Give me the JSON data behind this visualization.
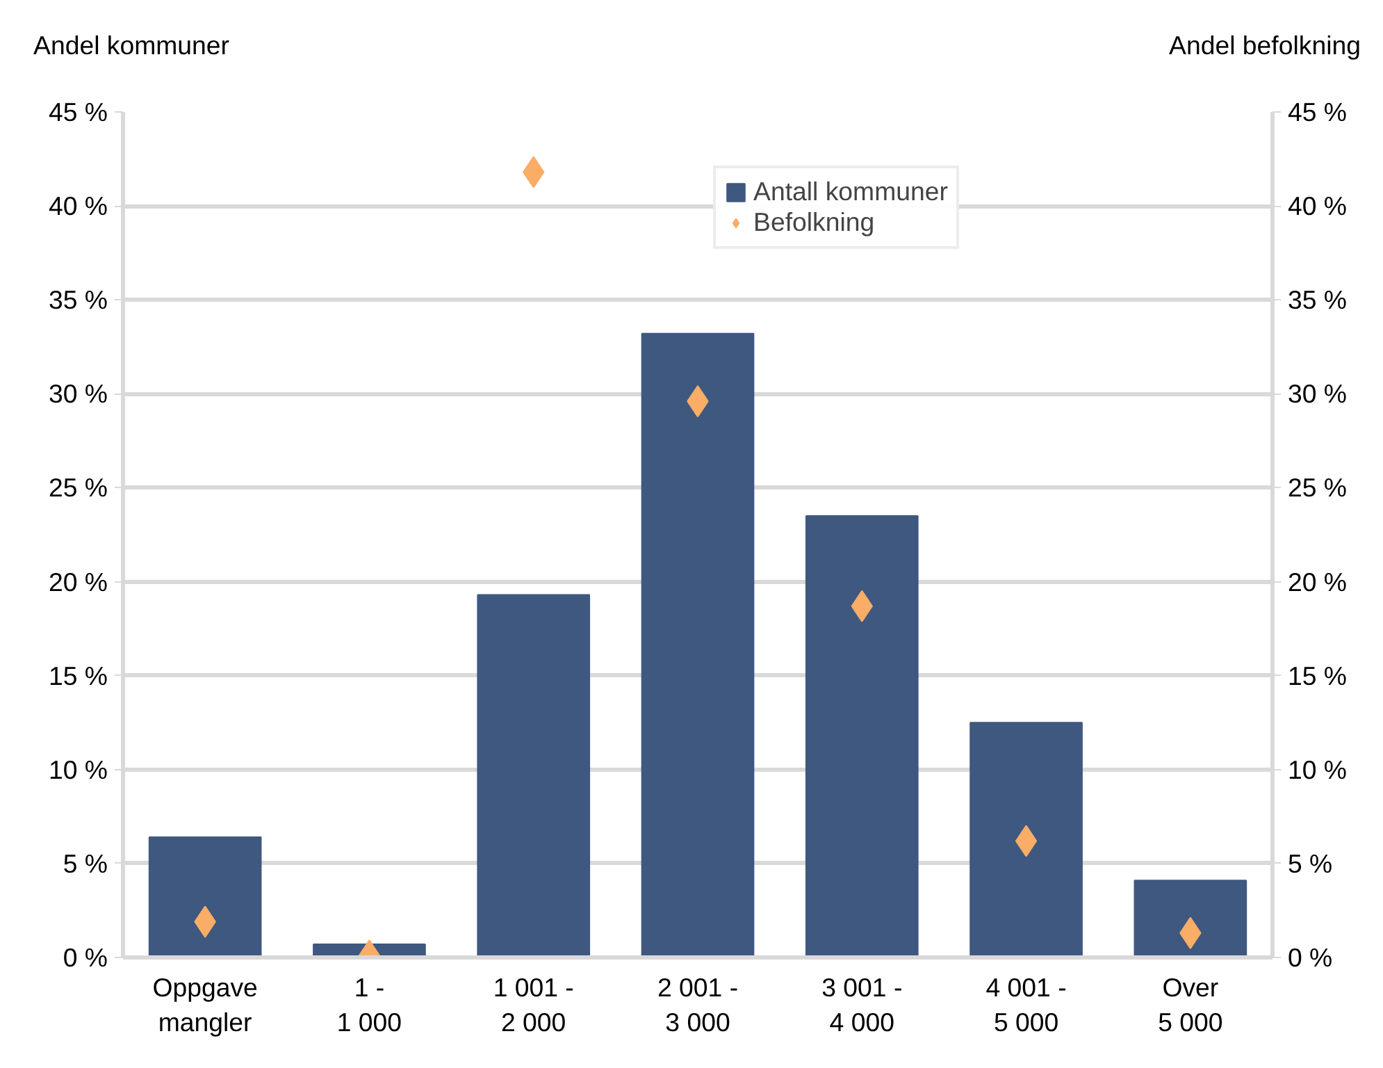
{
  "chart_data": {
    "type": "bar",
    "ylabel": "Andel kommuner",
    "y2label": "Andel befolkning",
    "categories": [
      "Oppgave\nmangler",
      "1 -\n1 000",
      "1 001 -\n2 000",
      "2 001 -\n3 000",
      "3 001 -\n4 000",
      "4 001 -\n5 000",
      "Over\n5 000"
    ],
    "series": [
      {
        "name": "Antall kommuner",
        "color": "#3f5880",
        "values": [
          6.4,
          0.7,
          19.3,
          33.2,
          23.5,
          12.5,
          4.1
        ]
      },
      {
        "name": "Befolkning",
        "type": "scatter",
        "marker": "diamond",
        "color": "#f9ad66",
        "values": [
          1.9,
          0.1,
          41.8,
          29.6,
          18.7,
          6.2,
          1.3
        ]
      }
    ],
    "ylim": [
      0,
      45
    ],
    "yticks": [
      {
        "value": 0,
        "label": "0 %"
      },
      {
        "value": 5,
        "label": "5 %"
      },
      {
        "value": 10,
        "label": "10 %"
      },
      {
        "value": 15,
        "label": "15 %"
      },
      {
        "value": 20,
        "label": "20 %"
      },
      {
        "value": 25,
        "label": "25 %"
      },
      {
        "value": 30,
        "label": "30 %"
      },
      {
        "value": 35,
        "label": "35 %"
      },
      {
        "value": 40,
        "label": "40 %"
      },
      {
        "value": 45,
        "label": "45 %"
      }
    ],
    "y2lim": [
      0,
      45
    ],
    "y2ticks": [
      {
        "value": 0,
        "label": "0 %"
      },
      {
        "value": 5,
        "label": "5 %"
      },
      {
        "value": 10,
        "label": "10 %"
      },
      {
        "value": 15,
        "label": "15 %"
      },
      {
        "value": 20,
        "label": "20 %"
      },
      {
        "value": 25,
        "label": "25 %"
      },
      {
        "value": 30,
        "label": "30 %"
      },
      {
        "value": 35,
        "label": "35 %"
      },
      {
        "value": 40,
        "label": "40 %"
      },
      {
        "value": 45,
        "label": "45 %"
      }
    ],
    "grid": "y",
    "legend": "top right"
  }
}
